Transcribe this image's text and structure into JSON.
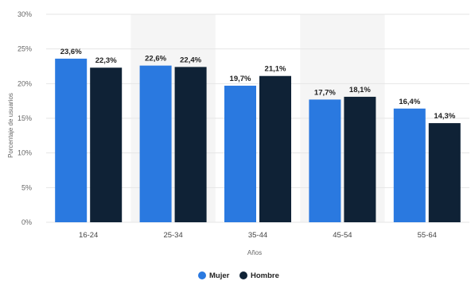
{
  "chart_data": {
    "type": "bar",
    "categories": [
      "16-24",
      "25-34",
      "35-44",
      "45-54",
      "55-64"
    ],
    "series": [
      {
        "name": "Mujer",
        "values": [
          23.6,
          22.6,
          19.7,
          17.7,
          16.4
        ],
        "labels": [
          "23,6%",
          "22,6%",
          "19,7%",
          "17,7%",
          "16,4%"
        ],
        "color": "#2a79e0"
      },
      {
        "name": "Hombre",
        "values": [
          22.3,
          22.4,
          21.1,
          18.1,
          14.3
        ],
        "labels": [
          "22,3%",
          "22,4%",
          "21,1%",
          "18,1%",
          "14,3%"
        ],
        "color": "#0f2236"
      }
    ],
    "xlabel": "Años",
    "ylabel": "Porcentaje de usuarios",
    "ylim": [
      0,
      30
    ],
    "yticks": [
      0,
      5,
      10,
      15,
      20,
      25,
      30
    ],
    "ytick_labels": [
      "0%",
      "5%",
      "10%",
      "15%",
      "20%",
      "25%",
      "30%"
    ],
    "grid": true,
    "legend_position": "bottom-center",
    "shaded_categories": [
      "25-34",
      "45-54"
    ],
    "shade_color": "#f5f5f5",
    "grid_color": "#e6e6e6"
  }
}
